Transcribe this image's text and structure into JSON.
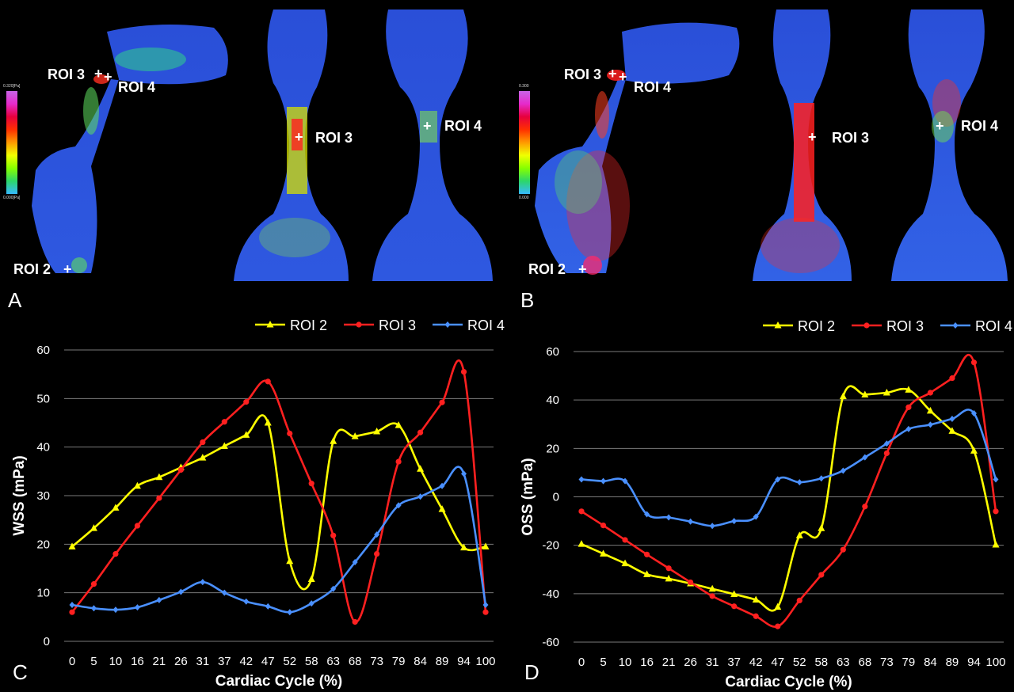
{
  "panels": {
    "A": {
      "letter": "A",
      "colorbar": {
        "max": "0.320[Pa]",
        "min": "0.000[Pa]"
      },
      "labels": {
        "roi3_left": "ROI 3",
        "roi4_left": "ROI 4",
        "roi2": "ROI 2",
        "roi3_mid": "ROI 3",
        "roi4_right": "ROI 4"
      }
    },
    "B": {
      "letter": "B",
      "colorbar": {
        "max": "0.300",
        "min": "0.000"
      },
      "labels": {
        "roi3_left": "ROI 3",
        "roi4_left": "ROI 4",
        "roi2": "ROI 2",
        "roi3_mid": "ROI 3",
        "roi4_right": "ROI 4"
      }
    }
  },
  "chart_data": [
    {
      "panel": "C",
      "type": "line",
      "title": "",
      "xlabel": "Cardiac Cycle (%)",
      "ylabel": "WSS (mPa)",
      "ylim": [
        0,
        60
      ],
      "yticks": [
        0,
        10,
        20,
        30,
        40,
        50,
        60
      ],
      "grid": true,
      "legend": "top-right",
      "categories": [
        "0",
        "5",
        "10",
        "16",
        "21",
        "26",
        "31",
        "37",
        "42",
        "47",
        "52",
        "58",
        "63",
        "68",
        "73",
        "79",
        "84",
        "89",
        "94",
        "100"
      ],
      "series": [
        {
          "name": "ROI 2",
          "color": "#ffff00",
          "marker": "triangle",
          "values": [
            19.5,
            23.3,
            27.5,
            32,
            33.8,
            35.8,
            37.8,
            40.2,
            42.5,
            45,
            16.5,
            12.8,
            41.2,
            42.2,
            43.2,
            44.5,
            35.5,
            27.2,
            19.3,
            19.5
          ]
        },
        {
          "name": "ROI 3",
          "color": "#ff2020",
          "marker": "circle",
          "values": [
            6,
            11.8,
            18,
            23.8,
            29.5,
            35.3,
            41,
            45.2,
            49.3,
            53.5,
            42.8,
            32.5,
            21.8,
            4,
            18,
            37,
            43,
            49.2,
            55.5,
            6
          ]
        },
        {
          "name": "ROI 4",
          "color": "#4a90ff",
          "marker": "diamond",
          "values": [
            7.5,
            6.8,
            6.5,
            7,
            8.5,
            10.2,
            12.2,
            10,
            8.2,
            7.2,
            6,
            7.8,
            10.8,
            16.3,
            22,
            28,
            29.8,
            32,
            34.5,
            7.5
          ]
        }
      ]
    },
    {
      "panel": "D",
      "type": "line",
      "title": "",
      "xlabel": "Cardiac Cycle (%)",
      "ylabel": "OSS (mPa)",
      "ylim": [
        -60,
        60
      ],
      "yticks": [
        -60,
        -40,
        -20,
        0,
        20,
        40,
        60
      ],
      "grid": true,
      "legend": "top-right",
      "categories": [
        "0",
        "5",
        "10",
        "16",
        "21",
        "26",
        "31",
        "37",
        "42",
        "47",
        "52",
        "58",
        "63",
        "68",
        "73",
        "79",
        "84",
        "89",
        "94",
        "100"
      ],
      "series": [
        {
          "name": "ROI 2",
          "color": "#ffff00",
          "marker": "triangle",
          "values": [
            -19.5,
            -23.5,
            -27.5,
            -32,
            -33.8,
            -35.8,
            -38,
            -40.2,
            -42.5,
            -45.5,
            -16,
            -13,
            41.5,
            42.2,
            43,
            44.2,
            35.5,
            27.2,
            19,
            -19.8
          ]
        },
        {
          "name": "ROI 3",
          "color": "#ff2020",
          "marker": "circle",
          "values": [
            -6,
            -11.8,
            -17.8,
            -23.8,
            -29.5,
            -35.3,
            -41,
            -45.2,
            -49.3,
            -53.5,
            -42.8,
            -32.2,
            -21.8,
            -4,
            18,
            37,
            43,
            49,
            55.5,
            -6
          ]
        },
        {
          "name": "ROI 4",
          "color": "#4a90ff",
          "marker": "diamond",
          "values": [
            7.2,
            6.5,
            6.5,
            -7.2,
            -8.5,
            -10.2,
            -12,
            -10,
            -8.2,
            7.2,
            6,
            7.6,
            10.8,
            16.3,
            22,
            28,
            29.8,
            32.2,
            34.5,
            7.2
          ]
        }
      ]
    }
  ],
  "panel_letters": {
    "C": "C",
    "D": "D"
  }
}
